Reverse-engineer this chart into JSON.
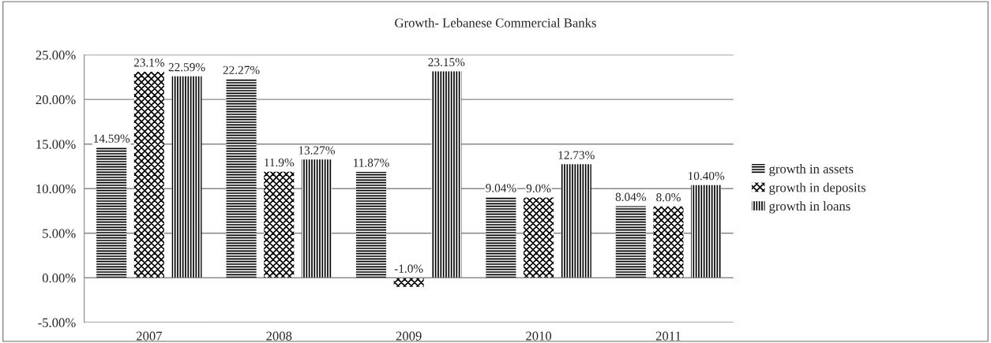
{
  "chart_data": {
    "type": "bar",
    "title": "Growth- Lebanese Commercial Banks",
    "categories": [
      "2007",
      "2008",
      "2009",
      "2010",
      "2011"
    ],
    "series": [
      {
        "name": "growth in assets",
        "color": "#000000",
        "values": [
          14.59,
          22.27,
          11.87,
          9.04,
          8.04
        ],
        "value_labels": [
          "14.59%",
          "22.27%",
          "11.87%",
          "9.04%",
          "8.04%"
        ]
      },
      {
        "name": "growth in deposits",
        "color": "#000000",
        "values": [
          23.1,
          11.9,
          -1.0,
          9.0,
          8.0
        ],
        "value_labels": [
          "23.1%",
          "11.9%",
          "-1.0%",
          "9.0%",
          "8.0%"
        ]
      },
      {
        "name": "growth in loans",
        "color": "#000000",
        "values": [
          22.59,
          13.27,
          23.15,
          12.73,
          10.4
        ],
        "value_labels": [
          "22.59%",
          "13.27%",
          "23.15%",
          "12.73%",
          "10.40%"
        ]
      }
    ],
    "ylim": [
      -5,
      25
    ],
    "yticks": [
      {
        "value": -5,
        "label": "-5.00%"
      },
      {
        "value": 0,
        "label": "0.00%"
      },
      {
        "value": 5,
        "label": "5.00%"
      },
      {
        "value": 10,
        "label": "10.00%"
      },
      {
        "value": 15,
        "label": "15.00%"
      },
      {
        "value": 20,
        "label": "20.00%"
      },
      {
        "value": 25,
        "label": "25.00%"
      }
    ],
    "grid": "y",
    "legend": "right"
  }
}
